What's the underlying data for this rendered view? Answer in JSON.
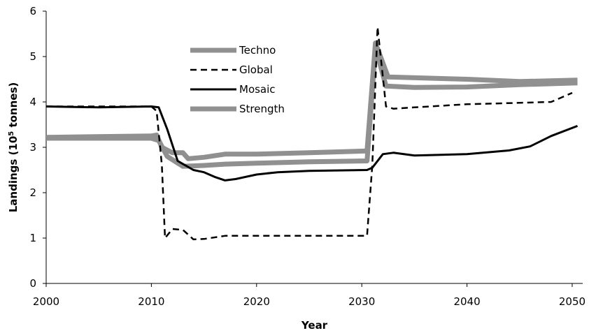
{
  "chart_data": {
    "type": "line",
    "title": "",
    "xlabel": "Year",
    "ylabel": "Landings (10",
    "ylabel_sup": "5",
    "ylabel_suffix": " tonnes)",
    "xlim": [
      2000,
      2051
    ],
    "ylim": [
      0,
      6
    ],
    "xticks": [
      "2000",
      "2010",
      "2020",
      "2030",
      "2040",
      "2050"
    ],
    "yticks": [
      "0",
      "1",
      "2",
      "3",
      "4",
      "5",
      "6"
    ],
    "grid": false,
    "legend_position": "top-center",
    "series": [
      {
        "name": "Techno",
        "color": "#909090",
        "style": "thick",
        "points": [
          [
            2000,
            3.22
          ],
          [
            2010,
            3.25
          ],
          [
            2010.5,
            3.27
          ],
          [
            2011,
            3.0
          ],
          [
            2012,
            2.88
          ],
          [
            2013,
            2.88
          ],
          [
            2013.5,
            2.75
          ],
          [
            2015,
            2.78
          ],
          [
            2017,
            2.85
          ],
          [
            2020,
            2.85
          ],
          [
            2025,
            2.88
          ],
          [
            2030.5,
            2.92
          ],
          [
            2031.3,
            5.3
          ],
          [
            2032.5,
            4.55
          ],
          [
            2040,
            4.5
          ],
          [
            2045,
            4.45
          ],
          [
            2050.5,
            4.48
          ]
        ]
      },
      {
        "name": "Global",
        "color": "#000000",
        "style": "dashed",
        "points": [
          [
            2000,
            3.9
          ],
          [
            2010,
            3.9
          ],
          [
            2010.5,
            3.8
          ],
          [
            2011,
            2.6
          ],
          [
            2011.3,
            1.0
          ],
          [
            2012,
            1.2
          ],
          [
            2013,
            1.18
          ],
          [
            2014,
            0.97
          ],
          [
            2015,
            0.98
          ],
          [
            2017,
            1.05
          ],
          [
            2020,
            1.05
          ],
          [
            2025,
            1.05
          ],
          [
            2030.5,
            1.05
          ],
          [
            2031,
            2.6
          ],
          [
            2031.5,
            5.65
          ],
          [
            2032.3,
            3.9
          ],
          [
            2033,
            3.85
          ],
          [
            2035,
            3.88
          ],
          [
            2040,
            3.95
          ],
          [
            2045,
            3.98
          ],
          [
            2048,
            4.0
          ],
          [
            2050,
            4.2
          ]
        ]
      },
      {
        "name": "Mosaic",
        "color": "#000000",
        "style": "solid",
        "points": [
          [
            2000,
            3.9
          ],
          [
            2005,
            3.88
          ],
          [
            2010,
            3.9
          ],
          [
            2010.7,
            3.88
          ],
          [
            2011.5,
            3.4
          ],
          [
            2012.5,
            2.7
          ],
          [
            2014,
            2.5
          ],
          [
            2015,
            2.45
          ],
          [
            2016,
            2.35
          ],
          [
            2017,
            2.27
          ],
          [
            2018,
            2.3
          ],
          [
            2020,
            2.4
          ],
          [
            2022,
            2.45
          ],
          [
            2025,
            2.48
          ],
          [
            2030.5,
            2.5
          ],
          [
            2031,
            2.55
          ],
          [
            2032,
            2.85
          ],
          [
            2033,
            2.88
          ],
          [
            2035,
            2.82
          ],
          [
            2040,
            2.85
          ],
          [
            2044,
            2.93
          ],
          [
            2046,
            3.02
          ],
          [
            2048,
            3.25
          ],
          [
            2050.5,
            3.47
          ]
        ]
      },
      {
        "name": "Strength",
        "color": "#909090",
        "style": "thick",
        "points": [
          [
            2000,
            3.2
          ],
          [
            2010,
            3.2
          ],
          [
            2010.7,
            3.15
          ],
          [
            2011.5,
            2.8
          ],
          [
            2013,
            2.58
          ],
          [
            2015,
            2.6
          ],
          [
            2017,
            2.63
          ],
          [
            2020,
            2.65
          ],
          [
            2025,
            2.68
          ],
          [
            2030.5,
            2.7
          ],
          [
            2031.3,
            5.2
          ],
          [
            2032.3,
            4.35
          ],
          [
            2035,
            4.32
          ],
          [
            2040,
            4.33
          ],
          [
            2045,
            4.38
          ],
          [
            2050.5,
            4.42
          ]
        ]
      }
    ]
  }
}
